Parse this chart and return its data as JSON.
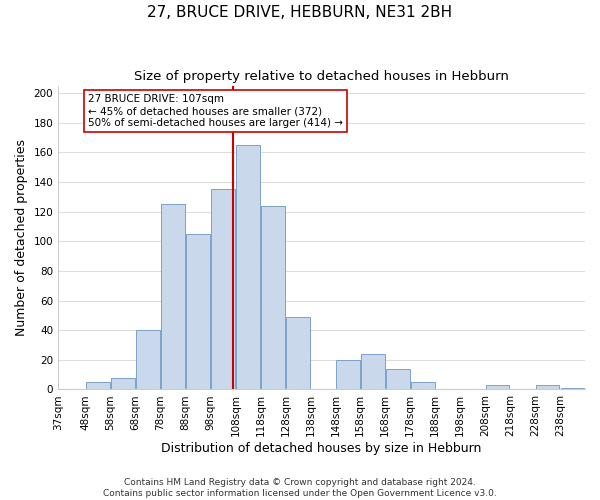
{
  "title": "27, BRUCE DRIVE, HEBBURN, NE31 2BH",
  "subtitle": "Size of property relative to detached houses in Hebburn",
  "xlabel": "Distribution of detached houses by size in Hebburn",
  "ylabel": "Number of detached properties",
  "bins": [
    "37sqm",
    "48sqm",
    "58sqm",
    "68sqm",
    "78sqm",
    "88sqm",
    "98sqm",
    "108sqm",
    "118sqm",
    "128sqm",
    "138sqm",
    "148sqm",
    "158sqm",
    "168sqm",
    "178sqm",
    "188sqm",
    "198sqm",
    "208sqm",
    "218sqm",
    "228sqm",
    "238sqm"
  ],
  "bin_edges": [
    37,
    48,
    58,
    68,
    78,
    88,
    98,
    108,
    118,
    128,
    138,
    148,
    158,
    168,
    178,
    188,
    198,
    208,
    218,
    228,
    238
  ],
  "counts": [
    0,
    5,
    8,
    40,
    125,
    105,
    135,
    165,
    124,
    49,
    0,
    20,
    24,
    14,
    5,
    0,
    0,
    3,
    0,
    3,
    1
  ],
  "bar_color": "#c9d9eb",
  "bar_edge_color": "#7ba3c8",
  "vline_x": 107,
  "vline_color": "#cc0000",
  "annotation_line1": "27 BRUCE DRIVE: 107sqm",
  "annotation_line2": "← 45% of detached houses are smaller (372)",
  "annotation_line3": "50% of semi-detached houses are larger (414) →",
  "annotation_box_color": "#ffffff",
  "annotation_box_edge_color": "#cc0000",
  "ylim": [
    0,
    205
  ],
  "yticks": [
    0,
    20,
    40,
    60,
    80,
    100,
    120,
    140,
    160,
    180,
    200
  ],
  "footer1": "Contains HM Land Registry data © Crown copyright and database right 2024.",
  "footer2": "Contains public sector information licensed under the Open Government Licence v3.0.",
  "bg_color": "#ffffff",
  "plot_bg_color": "#ffffff",
  "grid_color": "#dddddd",
  "title_fontsize": 11,
  "subtitle_fontsize": 9.5,
  "axis_label_fontsize": 9,
  "tick_fontsize": 7.5,
  "footer_fontsize": 6.5
}
